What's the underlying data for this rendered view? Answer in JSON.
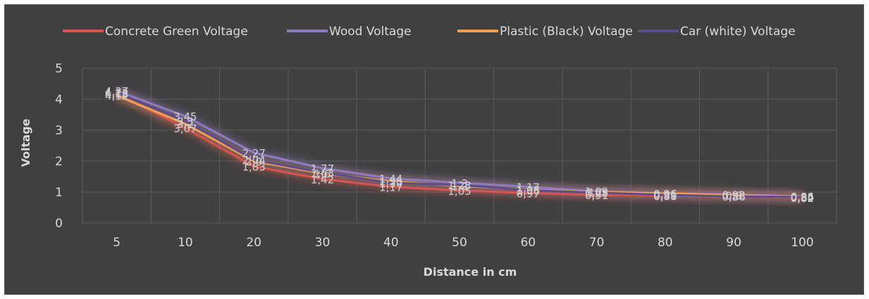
{
  "chart_data": {
    "type": "line",
    "title": "",
    "xlabel": "Distance in cm",
    "ylabel": "Voltage",
    "categories": [
      "5",
      "10",
      "20",
      "30",
      "40",
      "50",
      "60",
      "70",
      "80",
      "90",
      "100"
    ],
    "y_ticks": [
      "0",
      "1",
      "2",
      "3",
      "4",
      "5"
    ],
    "ylim": [
      0,
      5
    ],
    "grid": true,
    "legend_position": "top",
    "series": [
      {
        "name": "Concrete Green Voltage",
        "color": "#d9534f",
        "values": [
          4.18,
          3.07,
          1.83,
          1.42,
          1.17,
          1.05,
          0.97,
          0.91,
          0.88,
          0.86,
          0.82
        ],
        "labels": [
          "4,18",
          "3,07",
          "1,83",
          "1,42",
          "1,17",
          "1,05",
          "0,97",
          "0,91",
          "0,88",
          "0,86",
          "0,82"
        ]
      },
      {
        "name": "Wood Voltage",
        "color": "#8e7cc3",
        "values": [
          4.27,
          3.45,
          2.27,
          1.77,
          1.44,
          1.3,
          1.17,
          1.03,
          0.96,
          0.92,
          0.86
        ],
        "labels": [
          "4,27",
          "3,45",
          "2,27",
          "1,77",
          "1,44",
          "1,3",
          "1,17",
          "1,03",
          "0,96",
          "0,92",
          "0,86"
        ]
      },
      {
        "name": "Plastic (Black) Voltage",
        "color": "#f0a050",
        "values": [
          4.12,
          3.2,
          2.0,
          1.6,
          1.35,
          1.2,
          1.08,
          1.0,
          0.96,
          0.9,
          0.85
        ],
        "labels": [
          "4,12",
          "3,2",
          "2,0",
          "1,6",
          "1,35",
          "1,2",
          "1,08",
          "1,0",
          "0,96",
          "0,9",
          "0,85"
        ]
      },
      {
        "name": "Car (white) Voltage",
        "color": "#5a4d8a",
        "values": [
          4.22,
          3.3,
          2.04,
          1.63,
          1.3,
          1.23,
          1.06,
          0.98,
          0.91,
          0.86,
          0.84
        ],
        "labels": [
          "4,22",
          "3,3",
          "2,04",
          "1,63",
          "1,30",
          "1,23",
          "1,06",
          "0,98",
          "0,91",
          "0,86",
          "0,84"
        ]
      }
    ]
  }
}
